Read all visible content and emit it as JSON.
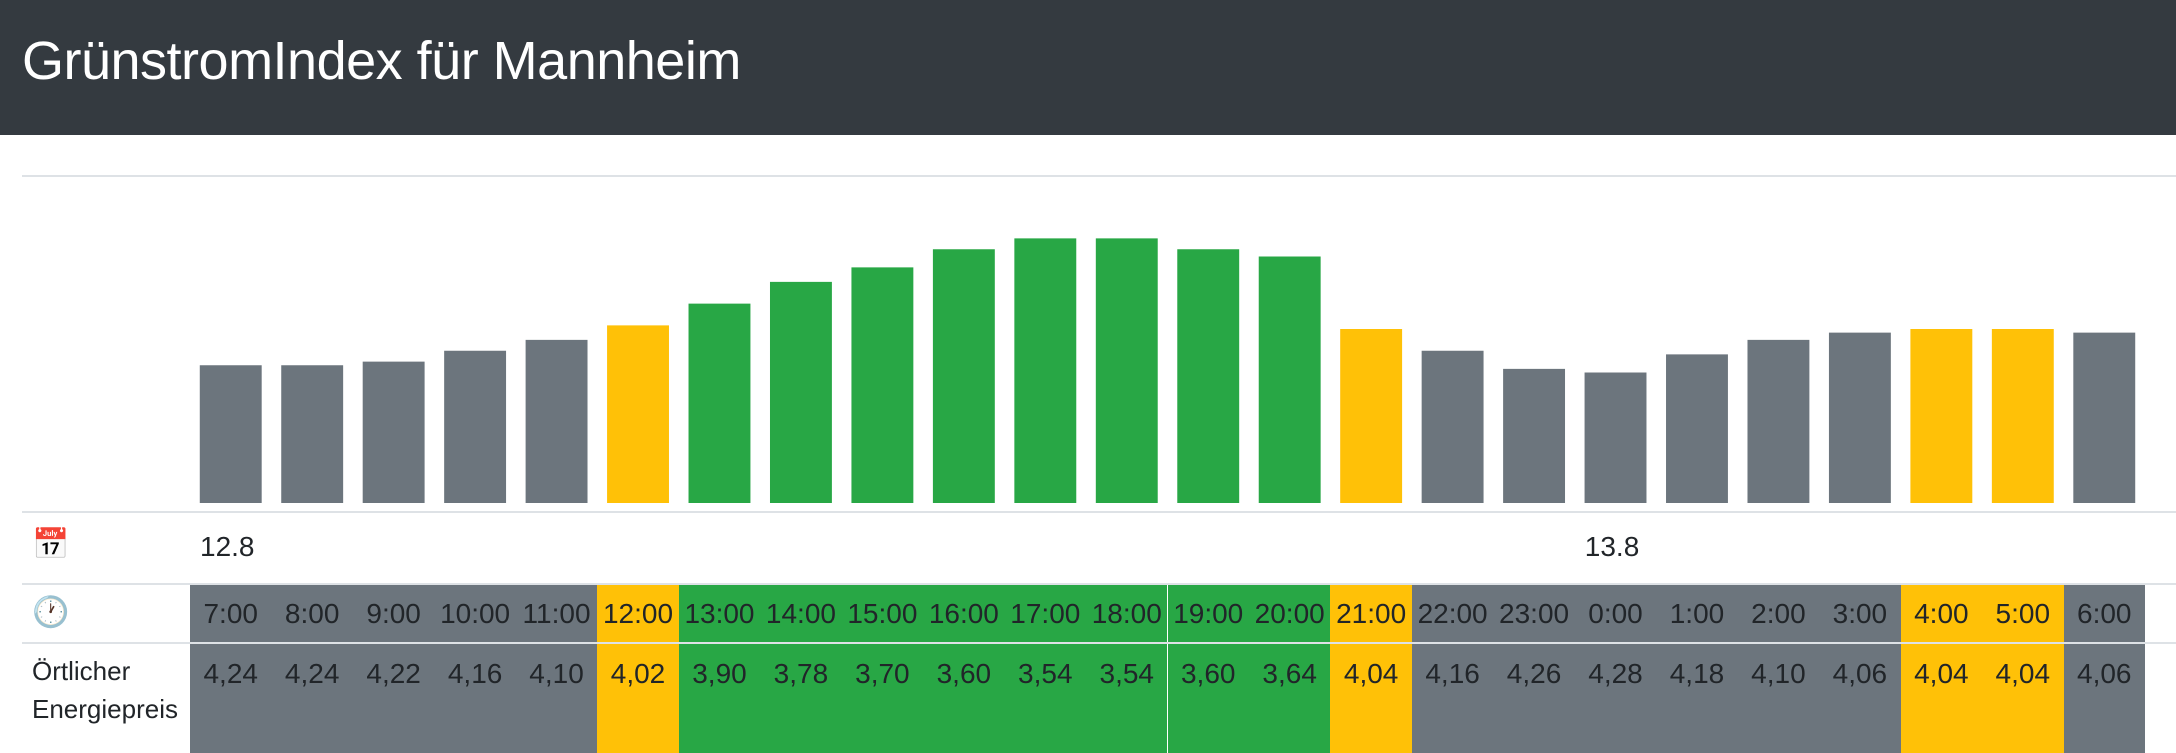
{
  "header": {
    "title": "GrünstromIndex für Mannheim"
  },
  "colors": {
    "gray": "#6c757d",
    "yellow": "#ffc107",
    "green": "#28a745",
    "navbar": "#343a40"
  },
  "icons": {
    "calendar": "calendar-icon",
    "clock": "clock-icon"
  },
  "rows": {
    "calendar_glyph": "📅",
    "clock_glyph": "🕐",
    "price_label": "Örtlicher Energiepreis"
  },
  "chart_data": {
    "type": "bar",
    "categories": [
      "7:00",
      "8:00",
      "9:00",
      "10:00",
      "11:00",
      "12:00",
      "13:00",
      "14:00",
      "15:00",
      "16:00",
      "17:00",
      "18:00",
      "19:00",
      "20:00",
      "21:00",
      "22:00",
      "23:00",
      "0:00",
      "1:00",
      "2:00",
      "3:00",
      "4:00",
      "5:00",
      "6:00"
    ],
    "values": [
      38,
      38,
      39,
      42,
      45,
      49,
      55,
      61,
      65,
      70,
      73,
      73,
      70,
      68,
      48,
      42,
      37,
      36,
      41,
      45,
      47,
      48,
      48,
      47
    ],
    "status": [
      "gray",
      "gray",
      "gray",
      "gray",
      "gray",
      "yellow",
      "green",
      "green",
      "green",
      "green",
      "green",
      "green",
      "green",
      "green",
      "yellow",
      "gray",
      "gray",
      "gray",
      "gray",
      "gray",
      "gray",
      "yellow",
      "yellow",
      "gray"
    ],
    "ylim": [
      0,
      80
    ],
    "dates": [
      {
        "label": "12.8",
        "index": 0
      },
      {
        "label": "13.8",
        "index": 17
      }
    ],
    "prices": [
      "4,24",
      "4,24",
      "4,22",
      "4,16",
      "4,10",
      "4,02",
      "3,90",
      "3,78",
      "3,70",
      "3,60",
      "3,54",
      "3,54",
      "3,60",
      "3,64",
      "4,04",
      "4,16",
      "4,26",
      "4,28",
      "4,18",
      "4,10",
      "4,06",
      "4,04",
      "4,04",
      "4,06"
    ],
    "title": "",
    "xlabel": "",
    "ylabel": ""
  }
}
